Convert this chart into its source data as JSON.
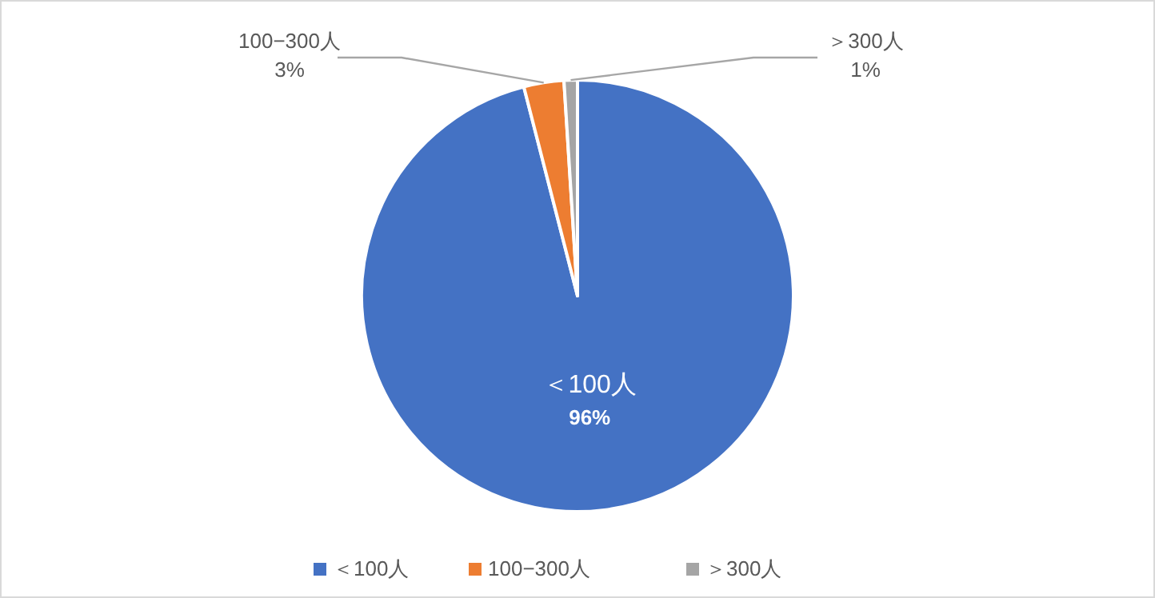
{
  "chart_data": {
    "type": "pie",
    "categories": [
      "＜100人",
      "100−300人",
      "＞300人"
    ],
    "values": [
      96,
      3,
      1
    ],
    "colors": [
      "#4472c4",
      "#ed7d31",
      "#a5a5a5"
    ],
    "value_labels": [
      "96%",
      "3%",
      "1%"
    ],
    "legend": "bottom"
  }
}
